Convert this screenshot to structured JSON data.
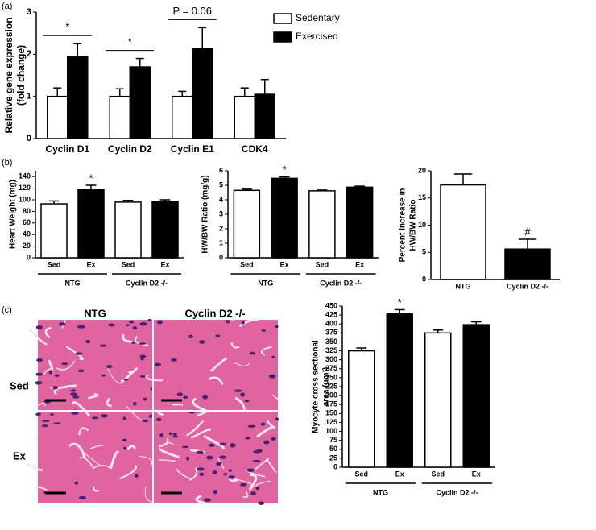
{
  "figure": {
    "panel_labels": [
      "(a)",
      "(b)",
      "(c)"
    ],
    "micrograph": {
      "columns": [
        "NTG",
        "Cyclin D2 -/-"
      ],
      "rows": [
        "Sed",
        "Ex"
      ]
    }
  },
  "chart_data": [
    {
      "type": "bar",
      "ylabel": [
        "Relative gene expression",
        "(fold change)"
      ],
      "categories": [
        "Cyclin D1",
        "Cyclin D2",
        "Cyclin E1",
        "CDK4"
      ],
      "series": [
        {
          "name": "Sedentary",
          "color": "#ffffff",
          "values": [
            1,
            1,
            1,
            1
          ],
          "errors": [
            0.2,
            0.18,
            0.12,
            0.2
          ]
        },
        {
          "name": "Exercised",
          "color": "#000000",
          "values": [
            1.95,
            1.7,
            2.13,
            1.05
          ],
          "errors": [
            0.3,
            0.2,
            0.5,
            0.35
          ]
        }
      ],
      "ylim": [
        0,
        3
      ],
      "yticks": [
        0,
        1,
        2,
        3
      ],
      "legend": "right",
      "annotations": [
        {
          "text": "*",
          "index": 0
        },
        {
          "text": "*",
          "index": 1
        },
        {
          "text": "P = 0.06",
          "index": 2
        }
      ]
    },
    {
      "type": "bar",
      "ylabel": [
        "Heart Weight (mg)"
      ],
      "categories": [
        "Sed",
        "Ex",
        "Sed",
        "Ex"
      ],
      "groups": [
        "NTG",
        "Cyclin D2 -/-"
      ],
      "series": [
        {
          "colors": [
            "#ffffff",
            "#000000",
            "#ffffff",
            "#000000"
          ],
          "values": [
            93,
            117,
            96,
            97
          ],
          "errors": [
            5,
            8,
            3,
            3
          ]
        }
      ],
      "ylim": [
        0,
        150
      ],
      "yticks": [
        0,
        20,
        40,
        60,
        80,
        100,
        120,
        140
      ],
      "annotations": [
        {
          "text": "*",
          "index": 1
        }
      ]
    },
    {
      "type": "bar",
      "ylabel": [
        "HW/BW Ratio (mg/g)"
      ],
      "categories": [
        "Sed",
        "Ex",
        "Sed",
        "Ex"
      ],
      "groups": [
        "NTG",
        "Cyclin D2 -/-"
      ],
      "series": [
        {
          "colors": [
            "#ffffff",
            "#000000",
            "#ffffff",
            "#000000"
          ],
          "values": [
            4.65,
            5.48,
            4.62,
            4.87
          ],
          "errors": [
            0.08,
            0.1,
            0.05,
            0.07
          ]
        }
      ],
      "ylim": [
        0,
        6
      ],
      "yticks": [
        0,
        1,
        2,
        3,
        4,
        5,
        6
      ],
      "annotations": [
        {
          "text": "*",
          "index": 1
        }
      ]
    },
    {
      "type": "bar",
      "ylabel": [
        "Percent Increase in",
        "HW/BW Ratio"
      ],
      "categories": [
        "NTG",
        "Cyclin D2 -/-"
      ],
      "series": [
        {
          "colors": [
            "#ffffff",
            "#000000"
          ],
          "values": [
            17.4,
            5.6
          ],
          "errors": [
            2,
            1.8
          ]
        }
      ],
      "ylim": [
        0,
        20
      ],
      "yticks": [
        0,
        5,
        10,
        15,
        20
      ],
      "annotations": [
        {
          "text": "#",
          "index": 1
        }
      ]
    },
    {
      "type": "bar",
      "ylabel": [
        "Myocyte cross sectional",
        "area (μm²)"
      ],
      "categories": [
        "Sed",
        "Ex",
        "Sed",
        "Ex"
      ],
      "groups": [
        "NTG",
        "Cyclin D2 -/-"
      ],
      "series": [
        {
          "colors": [
            "#ffffff",
            "#000000",
            "#ffffff",
            "#000000"
          ],
          "values": [
            325,
            428,
            375,
            398
          ],
          "errors": [
            8,
            12,
            8,
            8
          ]
        }
      ],
      "ylim": [
        0,
        450
      ],
      "yticks": [
        0,
        25,
        50,
        75,
        100,
        125,
        150,
        175,
        200,
        225,
        250,
        275,
        300,
        325,
        350,
        375,
        400,
        425,
        450
      ],
      "annotations": [
        {
          "text": "*",
          "index": 1
        }
      ]
    }
  ]
}
